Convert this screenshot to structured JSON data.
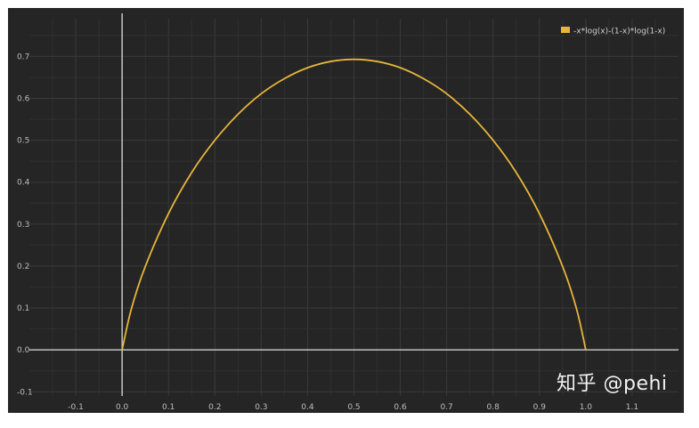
{
  "chart_data": {
    "type": "line",
    "title": "",
    "xlabel": "",
    "ylabel": "",
    "xlim": [
      -0.2,
      1.2
    ],
    "ylim": [
      -0.11,
      0.79
    ],
    "x_ticks": [
      "-0.1",
      "0.0",
      "0.1",
      "0.2",
      "0.3",
      "0.4",
      "0.5",
      "0.6",
      "0.7",
      "0.8",
      "0.9",
      "1.0",
      "1.1"
    ],
    "y_ticks": [
      "-0.1",
      "0.0",
      "0.1",
      "0.2",
      "0.3",
      "0.4",
      "0.5",
      "0.6",
      "0.7"
    ],
    "grid": true,
    "legend": "top-right",
    "series": [
      {
        "name": "-x*log(x)-(1-x)*log(1-x)",
        "color": "#e6b53a",
        "x": [
          0.0,
          0.02,
          0.05,
          0.1,
          0.15,
          0.2,
          0.25,
          0.3,
          0.35,
          0.4,
          0.45,
          0.5,
          0.55,
          0.6,
          0.65,
          0.7,
          0.75,
          0.8,
          0.85,
          0.9,
          0.95,
          0.98,
          1.0
        ],
        "y": [
          0.0,
          0.098,
          0.199,
          0.325,
          0.423,
          0.5,
          0.562,
          0.611,
          0.647,
          0.673,
          0.688,
          0.693,
          0.688,
          0.673,
          0.647,
          0.611,
          0.562,
          0.5,
          0.423,
          0.325,
          0.199,
          0.098,
          0.0
        ]
      }
    ]
  },
  "watermark": "知乎 @pehi"
}
